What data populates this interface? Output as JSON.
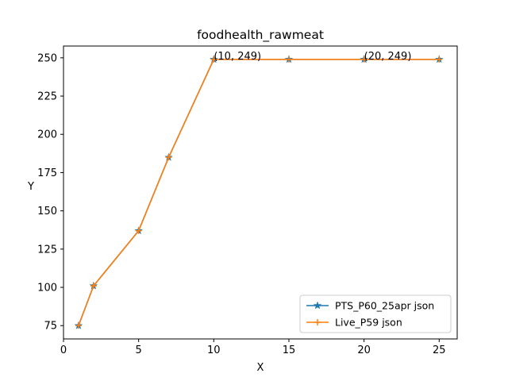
{
  "chart_data": {
    "type": "line",
    "title": "foodhealth_rawmeat",
    "xlabel": "X",
    "ylabel": "Y",
    "xlim": [
      0,
      26.2
    ],
    "ylim": [
      66.3,
      257.7
    ],
    "xticks": [
      0,
      5,
      10,
      15,
      20,
      25
    ],
    "yticks": [
      75,
      100,
      125,
      150,
      175,
      200,
      225,
      250
    ],
    "grid": false,
    "legend_position": "lower-right",
    "series": [
      {
        "name": "PTS_P60_25apr json",
        "color": "#1f77b4",
        "marker": "star",
        "x": [
          1,
          2,
          5,
          7,
          10,
          15,
          20,
          25
        ],
        "y": [
          75,
          101,
          137,
          185,
          249,
          249,
          249,
          249
        ]
      },
      {
        "name": "Live_P59 json",
        "color": "#ff7f0e",
        "marker": "plus",
        "x": [
          1,
          2,
          5,
          7,
          10,
          15,
          20,
          25
        ],
        "y": [
          75,
          101,
          137,
          185,
          249,
          249,
          249,
          249
        ]
      }
    ],
    "annotations": [
      {
        "text": "(10, 249)",
        "x": 10,
        "y": 249
      },
      {
        "text": "(20, 249)",
        "x": 20,
        "y": 249
      }
    ]
  }
}
